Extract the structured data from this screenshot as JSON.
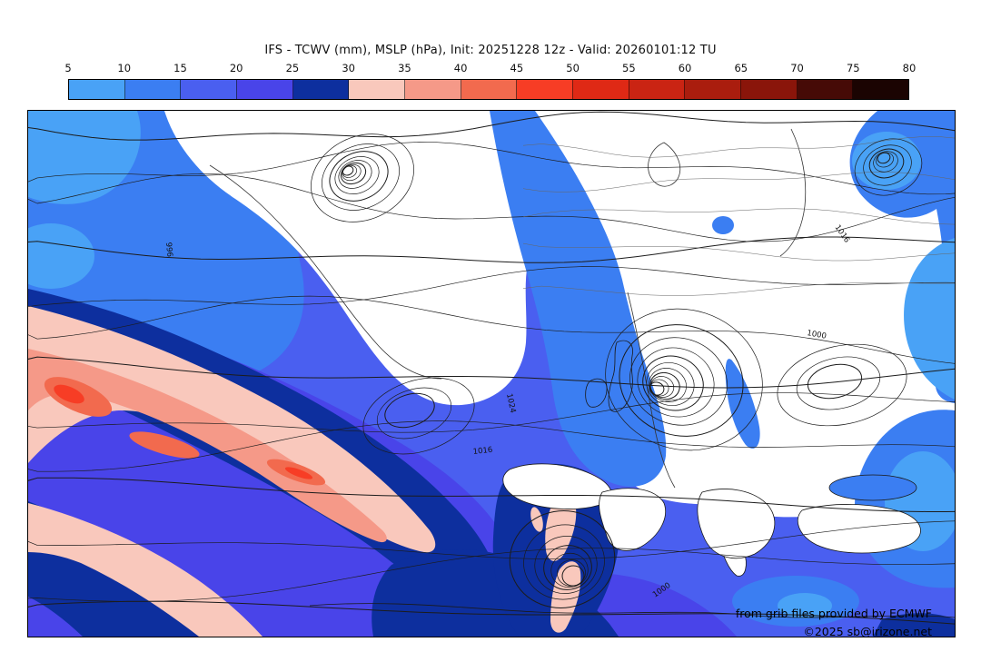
{
  "title": "IFS - TCWV (mm), MSLP (hPa), Init: 20251228 12z - Valid: 20260101:12 TU",
  "colorbar": {
    "tick_labels": [
      "5",
      "10",
      "15",
      "20",
      "25",
      "30",
      "35",
      "40",
      "45",
      "50",
      "55",
      "60",
      "65",
      "70",
      "75",
      "80"
    ],
    "segments": [
      {
        "range": "5-10",
        "color": "#49a2f6"
      },
      {
        "range": "10-15",
        "color": "#3b7ef2"
      },
      {
        "range": "15-20",
        "color": "#4a5ff0"
      },
      {
        "range": "20-25",
        "color": "#4944e9"
      },
      {
        "range": "25-30",
        "color": "#0d2f9e"
      },
      {
        "range": "30-35",
        "color": "#f9c8bc"
      },
      {
        "range": "35-40",
        "color": "#f59988"
      },
      {
        "range": "40-45",
        "color": "#f26a4e"
      },
      {
        "range": "45-50",
        "color": "#f73d25"
      },
      {
        "range": "50-55",
        "color": "#df2915"
      },
      {
        "range": "55-60",
        "color": "#ca2413"
      },
      {
        "range": "60-65",
        "color": "#aa1d0e"
      },
      {
        "range": "65-70",
        "color": "#8a150a"
      },
      {
        "range": "70-75",
        "color": "#460a06"
      },
      {
        "range": "75-80",
        "color": "#1b0402"
      }
    ]
  },
  "map": {
    "isobar_labels": [
      {
        "text": "1016"
      },
      {
        "text": "1024"
      },
      {
        "text": "1016"
      },
      {
        "text": "1000"
      },
      {
        "text": "1000"
      },
      {
        "text": "996"
      }
    ],
    "credits_line1": "from grib files provided by ECMWF",
    "credits_line2": "©2025 sb@irizone.net"
  },
  "chart_data": {
    "type": "heatmap",
    "title": "IFS - TCWV (mm), MSLP (hPa), Init: 20251228 12z - Valid: 20260101:12 TU",
    "model": "IFS",
    "fill_variable": "TCWV (mm)",
    "contour_variable": "MSLP (hPa)",
    "init_time": "20251228 12z",
    "valid_time": "20260101:12 TU",
    "legend_position": "top",
    "colorbar_ticks": [
      5,
      10,
      15,
      20,
      25,
      30,
      35,
      40,
      45,
      50,
      55,
      60,
      65,
      70,
      75,
      80
    ],
    "colorbar_colors": [
      "#49a2f6",
      "#3b7ef2",
      "#4a5ff0",
      "#4944e9",
      "#0d2f9e",
      "#f9c8bc",
      "#f59988",
      "#f26a4e",
      "#f73d25",
      "#df2915",
      "#ca2413",
      "#aa1d0e",
      "#8a150a",
      "#460a06",
      "#1b0402"
    ],
    "contour_labels_visible": [
      1016,
      1024,
      1016,
      1000,
      1000,
      996
    ],
    "visible_features": [
      "white (dry, <5 mm) area with tight spiral isobars over Greenland",
      "large white Arctic / Russia region in upper right with dense isobars",
      "deep low with closed circular isobars over the North Sea / southern Scandinavia",
      "closed low west of Iberia with dark-blue core and pale-pink filaments",
      "small closed low with blue patch in the top right corner",
      "pale-pink / salmon / red moisture plume (30-50 mm) across the lower left Atlantic bordered by dark navy 25-30 mm bands",
      "blues (5-30 mm) over the Atlantic and Mediterranean"
    ]
  }
}
